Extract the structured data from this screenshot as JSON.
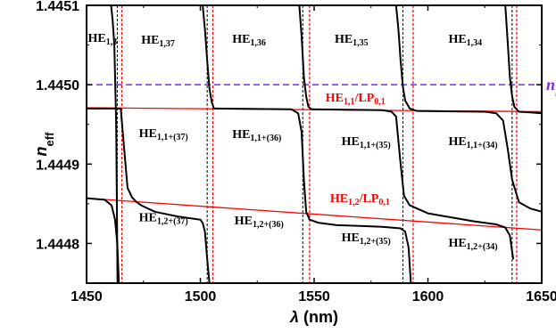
{
  "chart_data": {
    "type": "line",
    "xlabel": "λ (nm)",
    "xlabel_symbol": "λ",
    "xlabel_unit": " (nm)",
    "ylabel_base": "n",
    "ylabel_sub": "eff",
    "xlim": [
      1450,
      1650
    ],
    "ylim": [
      1.44475,
      1.4451
    ],
    "xticks": [
      1450,
      1500,
      1550,
      1600,
      1650
    ],
    "yticks": [
      1.4448,
      1.4449,
      1.445,
      1.4451
    ],
    "ytick_labels": [
      "1.4448",
      "1.4449",
      "1.4450",
      "1.4451"
    ],
    "colors": {
      "curve": "#000000",
      "fit": "#ff0000",
      "nl": "#7b2be2",
      "resonance": "#ff0000"
    },
    "horizontal_line": {
      "y": 1.445,
      "label_base": "n",
      "label_sub": "l"
    },
    "fit_lines": [
      {
        "x": [
          1450,
          1650
        ],
        "y": [
          1.444971,
          1.444966
        ]
      },
      {
        "x": [
          1450,
          1650
        ],
        "y": [
          1.444857,
          1.444817
        ]
      }
    ],
    "resonances": [
      {
        "black": 1463.5,
        "red": 1465.5
      },
      {
        "black": 1503.0,
        "red": 1505.5
      },
      {
        "black": 1545.0,
        "red": 1548.0
      },
      {
        "black": 1589.0,
        "red": 1593.5
      },
      {
        "black": 1637.0,
        "red": 1639.0
      }
    ],
    "series": [
      {
        "x": [
          1460.8,
          1461.5,
          1462.2,
          1463.0,
          1463.6
        ],
        "y": [
          1.4451,
          1.44508,
          1.44505,
          1.44495,
          1.44475
        ]
      },
      {
        "x": [
          1450,
          1465,
          1468,
          1470,
          1472,
          1474,
          1480,
          1490,
          1500,
          1501,
          1502,
          1503,
          1504
        ],
        "y": [
          1.44497,
          1.44497,
          1.44487,
          1.444858,
          1.444852,
          1.444848,
          1.44484,
          1.444834,
          1.44483,
          1.444826,
          1.444815,
          1.44478,
          1.44475
        ]
      },
      {
        "x": [
          1450,
          1458,
          1461,
          1462.5,
          1463.5,
          1464.2
        ],
        "y": [
          1.444857,
          1.444855,
          1.444848,
          1.44483,
          1.4448,
          1.44475
        ]
      },
      {
        "x": [
          1501,
          1502,
          1503,
          1504,
          1505,
          1506
        ],
        "y": [
          1.4451,
          1.44507,
          1.44503,
          1.444995,
          1.444978,
          1.44497
        ]
      },
      {
        "x": [
          1506,
          1540,
          1543,
          1544.5,
          1545.5,
          1546.5
        ],
        "y": [
          1.44497,
          1.444969,
          1.444964,
          1.44494,
          1.44488,
          1.44484
        ]
      },
      {
        "x": [
          1546.5,
          1548,
          1552,
          1560,
          1570,
          1580,
          1588,
          1590,
          1591.5,
          1592.5
        ],
        "y": [
          1.44484,
          1.44483,
          1.444826,
          1.444823,
          1.444822,
          1.444821,
          1.444819,
          1.444815,
          1.444795,
          1.44475
        ]
      },
      {
        "x": [
          1543.5,
          1544.5,
          1545.5,
          1546.5,
          1547.5,
          1549
        ],
        "y": [
          1.4451,
          1.44506,
          1.44501,
          1.444985,
          1.444972,
          1.444969
        ]
      },
      {
        "x": [
          1549,
          1580,
          1584,
          1586,
          1588,
          1589.5,
          1592,
          1600,
          1620,
          1630,
          1634,
          1636,
          1637.5
        ],
        "y": [
          1.444969,
          1.444968,
          1.444966,
          1.44496,
          1.4449,
          1.44486,
          1.444848,
          1.444838,
          1.444828,
          1.444824,
          1.44482,
          1.44481,
          1.44478
        ]
      },
      {
        "x": [
          1586,
          1587,
          1588,
          1589,
          1590,
          1592,
          1595
        ],
        "y": [
          1.4451,
          1.44507,
          1.44503,
          1.444998,
          1.44498,
          1.44497,
          1.444967
        ]
      },
      {
        "x": [
          1595,
          1625,
          1630,
          1633,
          1635,
          1637,
          1640,
          1645,
          1650
        ],
        "y": [
          1.444967,
          1.444966,
          1.444964,
          1.444955,
          1.44492,
          1.44488,
          1.444852,
          1.444844,
          1.44484
        ]
      },
      {
        "x": [
          1634,
          1635,
          1636,
          1637,
          1638,
          1640,
          1645,
          1650
        ],
        "y": [
          1.4451,
          1.445055,
          1.44501,
          1.444985,
          1.444972,
          1.444966,
          1.444965,
          1.444964
        ]
      }
    ],
    "mode_labels": [
      {
        "base": "HE",
        "sub": "1,3",
        "x": 1450.6,
        "y": 1.445054,
        "color": "#000000"
      },
      {
        "base": "HE",
        "sub": "1,37",
        "x": 1474,
        "y": 1.445052,
        "color": "#000000"
      },
      {
        "base": "HE",
        "sub": "1,36",
        "x": 1514,
        "y": 1.445053,
        "color": "#000000"
      },
      {
        "base": "HE",
        "sub": "1,35",
        "x": 1559,
        "y": 1.445053,
        "color": "#000000"
      },
      {
        "base": "HE",
        "sub": "1,34",
        "x": 1609,
        "y": 1.445053,
        "color": "#000000"
      },
      {
        "base": "HE",
        "sub": "1,1",
        "tail": "/LP",
        "tail_sub": "0,1",
        "x": 1555,
        "y": 1.444979,
        "color": "#ff0000"
      },
      {
        "base": "HE",
        "sub": "1,1+(37)",
        "x": 1473,
        "y": 1.444934,
        "color": "#000000"
      },
      {
        "base": "HE",
        "sub": "1,1+(36)",
        "x": 1514,
        "y": 1.444933,
        "color": "#000000"
      },
      {
        "base": "HE",
        "sub": "1,1+(35)",
        "x": 1562,
        "y": 1.444924,
        "color": "#000000"
      },
      {
        "base": "HE",
        "sub": "1,1+(34)",
        "x": 1609,
        "y": 1.444924,
        "color": "#000000"
      },
      {
        "base": "HE",
        "sub": "1,2",
        "tail": "/LP",
        "tail_sub": "0,1",
        "x": 1557,
        "y": 1.444852,
        "color": "#ff0000"
      },
      {
        "base": "HE",
        "sub": "1,2+(37)",
        "x": 1473,
        "y": 1.444828,
        "color": "#000000"
      },
      {
        "base": "HE",
        "sub": "1,2+(36)",
        "x": 1515,
        "y": 1.444824,
        "color": "#000000"
      },
      {
        "base": "HE",
        "sub": "1,2+(35)",
        "x": 1562,
        "y": 1.444803,
        "color": "#000000"
      },
      {
        "base": "HE",
        "sub": "1,2+(34)",
        "x": 1609,
        "y": 1.444796,
        "color": "#000000"
      }
    ]
  }
}
